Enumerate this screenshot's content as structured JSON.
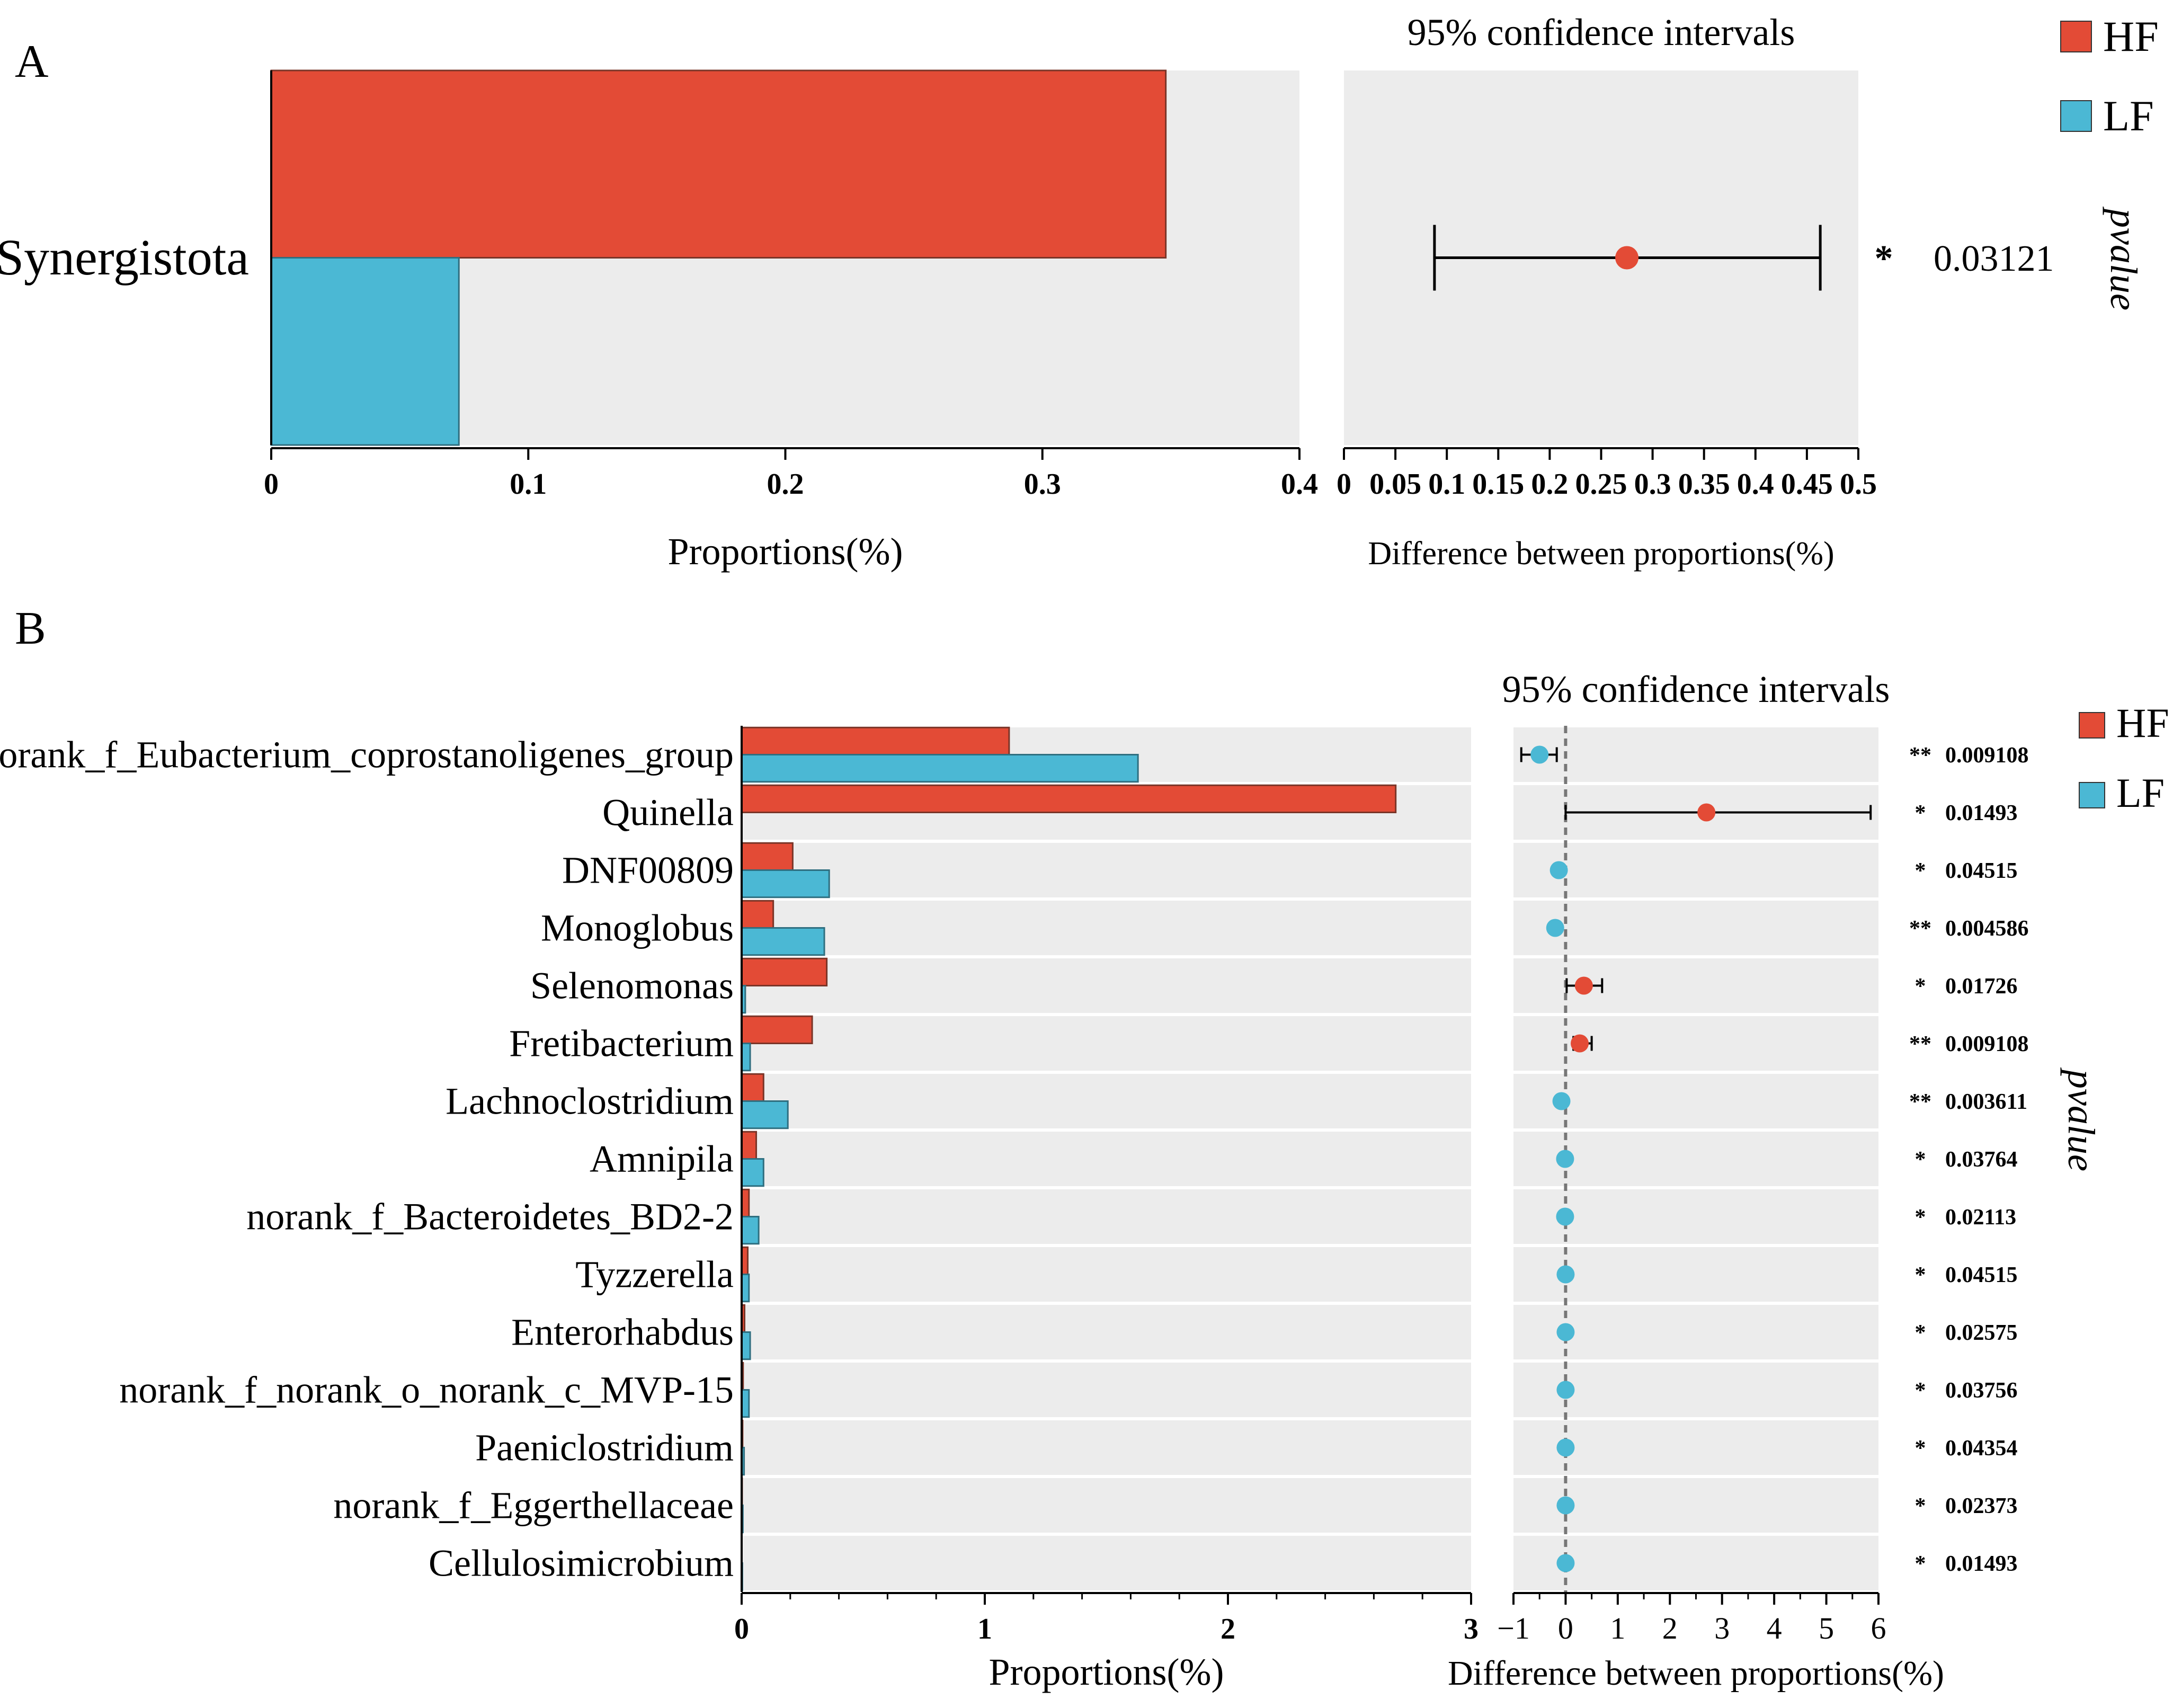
{
  "colors": {
    "hf": "#e34b36",
    "lf": "#4bb8d4",
    "panel_bg": "#ececec",
    "star_blue": "#2b4a7a"
  },
  "legend": [
    {
      "label": "HF",
      "color": "#e34b36"
    },
    {
      "label": "LF",
      "color": "#4bb8d4"
    }
  ],
  "chart_data": [
    {
      "panel": "A",
      "type": "bar",
      "orientation": "horizontal",
      "categories": [
        "Synergistota"
      ],
      "series": [
        {
          "name": "HF",
          "values": [
            0.348
          ]
        },
        {
          "name": "LF",
          "values": [
            0.073
          ]
        }
      ],
      "xlabel": "Proportions(%)",
      "xlim": [
        0,
        0.4
      ],
      "xticks": [
        "0",
        "0.1",
        "0.2",
        "0.3",
        "0.4"
      ],
      "ci": {
        "title": "95% confidence intervals",
        "xlabel": "Difference between proportions(%)",
        "xlim": [
          0,
          0.5
        ],
        "xticks": [
          "0",
          "0.05",
          "0.1",
          "0.15",
          "0.2",
          "0.25",
          "0.3",
          "0.35",
          "0.4",
          "0.45",
          "0.5"
        ],
        "points": [
          {
            "estimate": 0.275,
            "low": 0.088,
            "high": 0.463,
            "group": "HF"
          }
        ]
      },
      "pvalue_label": "pvalue",
      "pvalues": [
        {
          "star": "*",
          "value": "0.03121"
        }
      ]
    },
    {
      "panel": "B",
      "type": "bar",
      "orientation": "horizontal",
      "categories": [
        "norank_f_Eubacterium_coprostanoligenes_group",
        "Quinella",
        "DNF00809",
        "Monoglobus",
        "Selenomonas",
        "Fretibacterium",
        "Lachnoclostridium",
        "Amnipila",
        "norank_f_Bacteroidetes_BD2-2",
        "Tyzzerella",
        "Enterorhabdus",
        "norank_f_norank_o_norank_c_MVP-15",
        "Paeniclostridium",
        "norank_f_Eggerthellaceae",
        "Cellulosimicrobium"
      ],
      "series": [
        {
          "name": "HF",
          "values": [
            1.1,
            2.69,
            0.21,
            0.13,
            0.35,
            0.29,
            0.09,
            0.06,
            0.03,
            0.025,
            0.012,
            0.006,
            0.004,
            0.002,
            0.001
          ]
        },
        {
          "name": "LF",
          "values": [
            1.63,
            0.0,
            0.36,
            0.34,
            0.015,
            0.035,
            0.19,
            0.09,
            0.07,
            0.03,
            0.035,
            0.03,
            0.01,
            0.005,
            0.003
          ]
        }
      ],
      "xlabel": "Proportions(%)",
      "xlim": [
        0,
        3
      ],
      "xticks": [
        "0",
        "1",
        "2",
        "3"
      ],
      "ci": {
        "title": "95% confidence intervals",
        "xlabel": "Difference between proportions(%)",
        "xlim": [
          -1,
          6
        ],
        "xticks": [
          "−1",
          "0",
          "1",
          "2",
          "3",
          "4",
          "5",
          "6"
        ],
        "points": [
          {
            "estimate": -0.5,
            "low": -0.85,
            "high": -0.17,
            "group": "LF"
          },
          {
            "estimate": 2.7,
            "low": 0.0,
            "high": 5.85,
            "group": "HF"
          },
          {
            "estimate": -0.13,
            "low": -0.13,
            "high": -0.13,
            "group": "LF"
          },
          {
            "estimate": -0.2,
            "low": -0.2,
            "high": -0.2,
            "group": "LF"
          },
          {
            "estimate": 0.35,
            "low": 0.02,
            "high": 0.7,
            "group": "HF"
          },
          {
            "estimate": 0.27,
            "low": 0.15,
            "high": 0.5,
            "group": "HF"
          },
          {
            "estimate": -0.08,
            "low": -0.08,
            "high": -0.08,
            "group": "LF"
          },
          {
            "estimate": -0.01,
            "low": -0.01,
            "high": -0.01,
            "group": "LF"
          },
          {
            "estimate": -0.01,
            "low": -0.01,
            "high": -0.01,
            "group": "LF"
          },
          {
            "estimate": 0.0,
            "low": 0.0,
            "high": 0.0,
            "group": "LF"
          },
          {
            "estimate": 0.0,
            "low": 0.0,
            "high": 0.0,
            "group": "LF"
          },
          {
            "estimate": 0.0,
            "low": 0.0,
            "high": 0.0,
            "group": "LF"
          },
          {
            "estimate": 0.0,
            "low": 0.0,
            "high": 0.0,
            "group": "LF"
          },
          {
            "estimate": 0.0,
            "low": 0.0,
            "high": 0.0,
            "group": "LF"
          },
          {
            "estimate": 0.0,
            "low": 0.0,
            "high": 0.0,
            "group": "LF"
          }
        ]
      },
      "pvalue_label": "pvalue",
      "pvalues": [
        {
          "star": "**",
          "value": "0.009108"
        },
        {
          "star": "*",
          "value": "0.01493"
        },
        {
          "star": "*",
          "value": "0.04515"
        },
        {
          "star": "**",
          "value": "0.004586"
        },
        {
          "star": "*",
          "value": "0.01726"
        },
        {
          "star": "**",
          "value": "0.009108"
        },
        {
          "star": "**",
          "value": "0.003611"
        },
        {
          "star": "*",
          "value": "0.03764"
        },
        {
          "star": "*",
          "value": "0.02113"
        },
        {
          "star": "*",
          "value": "0.04515"
        },
        {
          "star": "*",
          "value": "0.02575"
        },
        {
          "star": "*",
          "value": "0.03756"
        },
        {
          "star": "*",
          "value": "0.04354"
        },
        {
          "star": "*",
          "value": "0.02373"
        },
        {
          "star": "*",
          "value": "0.01493"
        }
      ]
    }
  ]
}
